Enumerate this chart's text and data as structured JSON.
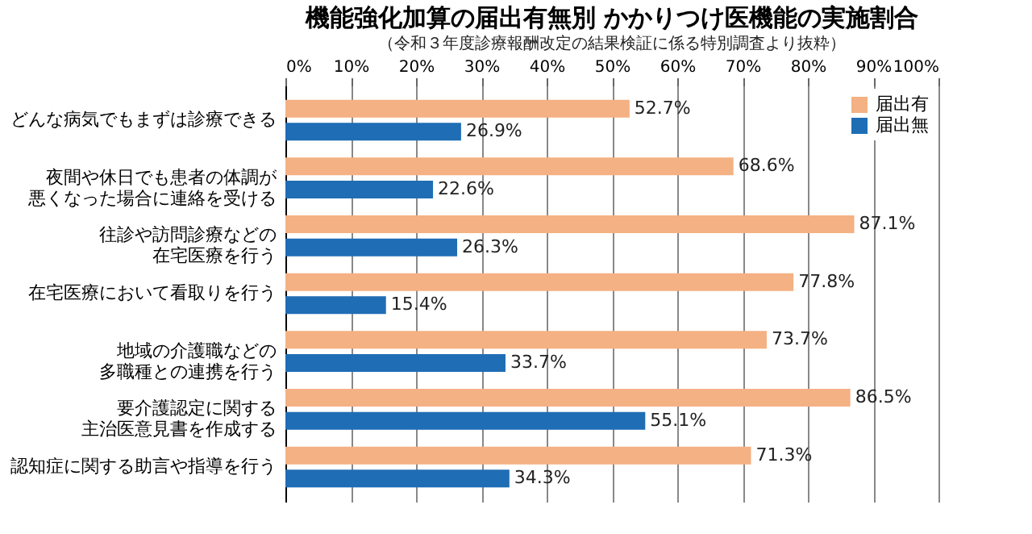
{
  "chart_data": {
    "type": "bar",
    "orientation": "horizontal",
    "title": "機能強化加算の届出有無別 かかりつけ医機能の実施割合",
    "subtitle": "（令和３年度診療報酬改定の結果検証に係る特別調査より抜粋）",
    "categories": [
      "どんな病気でもまずは診療できる",
      "夜間や休日でも患者の体調が悪くなった場合に連絡を受ける",
      "往診や訪問診療などの在宅医療を行う",
      "在宅医療において看取りを行う",
      "地域の介護職などの多職種との連携を行う",
      "要介護認定に関する主治医意見書を作成する",
      "認知症に関する助言や指導を行う"
    ],
    "series": [
      {
        "name": "届出有",
        "color": "#f4b183",
        "values": [
          52.7,
          68.6,
          87.1,
          77.8,
          73.7,
          86.5,
          71.3
        ],
        "value_labels": [
          "52.7%",
          "68.6%",
          "87.1%",
          "77.8%",
          "73.7%",
          "86.5%",
          "71.3%"
        ]
      },
      {
        "name": "届出無",
        "color": "#1f6db5",
        "values": [
          26.9,
          22.6,
          26.3,
          15.4,
          33.7,
          55.1,
          34.3
        ],
        "value_labels": [
          "26.9%",
          "22.6%",
          "26.3%",
          "15.4%",
          "33.7%",
          "55.1%",
          "34.3%"
        ]
      }
    ],
    "xlim": [
      0,
      100
    ],
    "xticks": [
      {
        "value": 0,
        "label": "0%"
      },
      {
        "value": 10,
        "label": "10%"
      },
      {
        "value": 20,
        "label": "20%"
      },
      {
        "value": 30,
        "label": "30%"
      },
      {
        "value": 40,
        "label": "40%"
      },
      {
        "value": 50,
        "label": "50%"
      },
      {
        "value": 60,
        "label": "60%"
      },
      {
        "value": 70,
        "label": "70%"
      },
      {
        "value": 80,
        "label": "80%"
      },
      {
        "value": 90,
        "label": "90%"
      },
      {
        "value": 100,
        "label": "100%"
      }
    ],
    "grid": "x",
    "legend": "top right"
  }
}
